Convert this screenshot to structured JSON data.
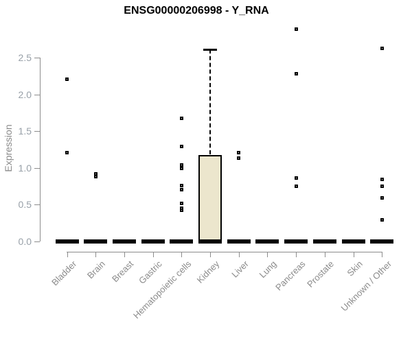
{
  "page": {
    "title": "ENSG00000206998 - Y_RNA"
  },
  "colors": {
    "box_fill": "#ece6cd",
    "box_border": "#000000",
    "axis_line": "#8c8c8c",
    "y_tick_text": "#98a0a8",
    "x_tick_text": "#8b8b8b",
    "title_text": "#000000"
  },
  "chart_data": {
    "type": "boxplot",
    "title": "ENSG00000206998 - Y_RNA",
    "xlabel": "",
    "ylabel": "Expression",
    "ylim": [
      0,
      2.9
    ],
    "yticks": [
      0.0,
      0.5,
      1.0,
      1.5,
      2.0,
      2.5
    ],
    "grid": false,
    "legend_position": "none",
    "categories": [
      "Bladder",
      "Brain",
      "Breast",
      "Gastric",
      "Hematopoietic cells",
      "Kidney",
      "Liver",
      "Lung",
      "Pancreas",
      "Prostate",
      "Skin",
      "Unknown / Other"
    ],
    "boxes": [
      {
        "category": "Bladder",
        "q1": 0,
        "median": 0,
        "q3": 0,
        "whisker_low": 0,
        "whisker_high": 0,
        "outliers": [
          2.21,
          1.21
        ]
      },
      {
        "category": "Brain",
        "q1": 0,
        "median": 0,
        "q3": 0,
        "whisker_low": 0,
        "whisker_high": 0,
        "outliers": [
          0.92,
          0.88
        ]
      },
      {
        "category": "Breast",
        "q1": 0,
        "median": 0,
        "q3": 0,
        "whisker_low": 0,
        "whisker_high": 0,
        "outliers": []
      },
      {
        "category": "Gastric",
        "q1": 0,
        "median": 0,
        "q3": 0,
        "whisker_low": 0,
        "whisker_high": 0,
        "outliers": []
      },
      {
        "category": "Hematopoietic cells",
        "q1": 0,
        "median": 0,
        "q3": 0,
        "whisker_low": 0,
        "whisker_high": 0,
        "outliers": [
          1.67,
          1.29,
          1.04,
          0.99,
          0.76,
          0.7,
          0.52,
          0.45,
          0.42
        ]
      },
      {
        "category": "Kidney",
        "q1": 0,
        "median": 0,
        "q3": 1.18,
        "whisker_low": 0,
        "whisker_high": 2.61,
        "outliers": []
      },
      {
        "category": "Liver",
        "q1": 0,
        "median": 0,
        "q3": 0,
        "whisker_low": 0,
        "whisker_high": 0,
        "outliers": [
          1.21,
          1.13
        ]
      },
      {
        "category": "Lung",
        "q1": 0,
        "median": 0,
        "q3": 0,
        "whisker_low": 0,
        "whisker_high": 0,
        "outliers": []
      },
      {
        "category": "Pancreas",
        "q1": 0,
        "median": 0,
        "q3": 0,
        "whisker_low": 0,
        "whisker_high": 0,
        "outliers": [
          2.89,
          2.28,
          0.86,
          0.75
        ]
      },
      {
        "category": "Prostate",
        "q1": 0,
        "median": 0,
        "q3": 0,
        "whisker_low": 0,
        "whisker_high": 0,
        "outliers": []
      },
      {
        "category": "Skin",
        "q1": 0,
        "median": 0,
        "q3": 0,
        "whisker_low": 0,
        "whisker_high": 0,
        "outliers": []
      },
      {
        "category": "Unknown / Other",
        "q1": 0,
        "median": 0,
        "q3": 0,
        "whisker_low": 0,
        "whisker_high": 0,
        "outliers": [
          2.63,
          0.84,
          0.75,
          0.59,
          0.29
        ]
      }
    ]
  }
}
